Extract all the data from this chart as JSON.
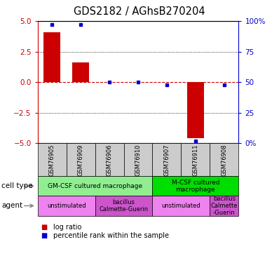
{
  "title": "GDS2182 / AGhsB270204",
  "samples": [
    "GSM76905",
    "GSM76909",
    "GSM76906",
    "GSM76910",
    "GSM76907",
    "GSM76911",
    "GSM76908"
  ],
  "log_ratio": [
    4.1,
    1.6,
    0.0,
    0.0,
    0.0,
    -4.6,
    0.0
  ],
  "percentile_rank": [
    97,
    97,
    50,
    50,
    48,
    2,
    48
  ],
  "ylim": [
    -5,
    5
  ],
  "y2lim": [
    0,
    100
  ],
  "yticks": [
    -5,
    -2.5,
    0,
    2.5,
    5
  ],
  "y2ticks": [
    0,
    25,
    50,
    75,
    100
  ],
  "y2ticklabels": [
    "0%",
    "25",
    "50",
    "75",
    "100%"
  ],
  "bar_color": "#CC0000",
  "dot_color": "#0000CC",
  "zero_line_color": "#CC0000",
  "grid_color": "#000000",
  "cell_type_groups": [
    {
      "label": "GM-CSF cultured macrophage",
      "start": 0,
      "end": 4,
      "color": "#90EE90"
    },
    {
      "label": "M-CSF cultured\nmacrophage",
      "start": 4,
      "end": 7,
      "color": "#00DD00"
    }
  ],
  "agent_groups": [
    {
      "label": "unstimulated",
      "start": 0,
      "end": 2,
      "color": "#EE82EE"
    },
    {
      "label": "bacillus\nCalmette-Guerin",
      "start": 2,
      "end": 4,
      "color": "#CC55CC"
    },
    {
      "label": "unstimulated",
      "start": 4,
      "end": 6,
      "color": "#EE82EE"
    },
    {
      "label": "bacillus\nCalmette\n-Guerin",
      "start": 6,
      "end": 7,
      "color": "#CC55CC"
    }
  ],
  "legend_items": [
    {
      "label": "log ratio",
      "color": "#CC0000"
    },
    {
      "label": "percentile rank within the sample",
      "color": "#0000CC"
    }
  ],
  "xlabel_fontsize": 7,
  "ylabel_left_color": "#CC0000",
  "ylabel_right_color": "#0000CC",
  "title_fontsize": 10.5,
  "xtick_bg_color": "#CCCCCC"
}
